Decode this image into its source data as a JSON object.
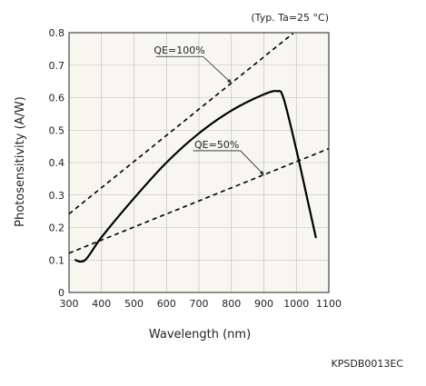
{
  "chart_data": {
    "type": "line",
    "title": "",
    "condition_note": "(Typ. Ta=25 °C)",
    "xlabel": "Wavelength (nm)",
    "ylabel": "Photosensitivity (A/W)",
    "xlim": [
      300,
      1100
    ],
    "ylim": [
      0,
      0.8
    ],
    "x_ticks": [
      300,
      400,
      500,
      600,
      700,
      800,
      900,
      1000,
      1100
    ],
    "y_ticks": [
      0,
      0.1,
      0.2,
      0.3,
      0.4,
      0.5,
      0.6,
      0.7,
      0.8
    ],
    "grid": true,
    "series": [
      {
        "name": "",
        "style": "solid",
        "color": "#000000",
        "x": [
          320,
          350,
          400,
          500,
          600,
          700,
          800,
          900,
          940,
          960,
          1000,
          1040,
          1060
        ],
        "y": [
          0.1,
          0.1,
          0.17,
          0.29,
          0.4,
          0.49,
          0.56,
          0.61,
          0.62,
          0.6,
          0.44,
          0.26,
          0.17
        ]
      },
      {
        "name": "QE=100%",
        "style": "dashed",
        "color": "#000000",
        "x": [
          300,
          990
        ],
        "y": [
          0.242,
          0.798
        ]
      },
      {
        "name": "QE=50%",
        "style": "dashed",
        "color": "#000000",
        "x": [
          300,
          1100
        ],
        "y": [
          0.121,
          0.443
        ]
      }
    ],
    "annotations": [
      {
        "text": "QE=100%",
        "label_x": 640,
        "label_y": 0.735,
        "target_x": 800,
        "target_y": 0.645
      },
      {
        "text": "QE=50%",
        "label_x": 755,
        "label_y": 0.445,
        "target_x": 900,
        "target_y": 0.362
      }
    ],
    "footer_code": "KPSDB0013EC"
  }
}
